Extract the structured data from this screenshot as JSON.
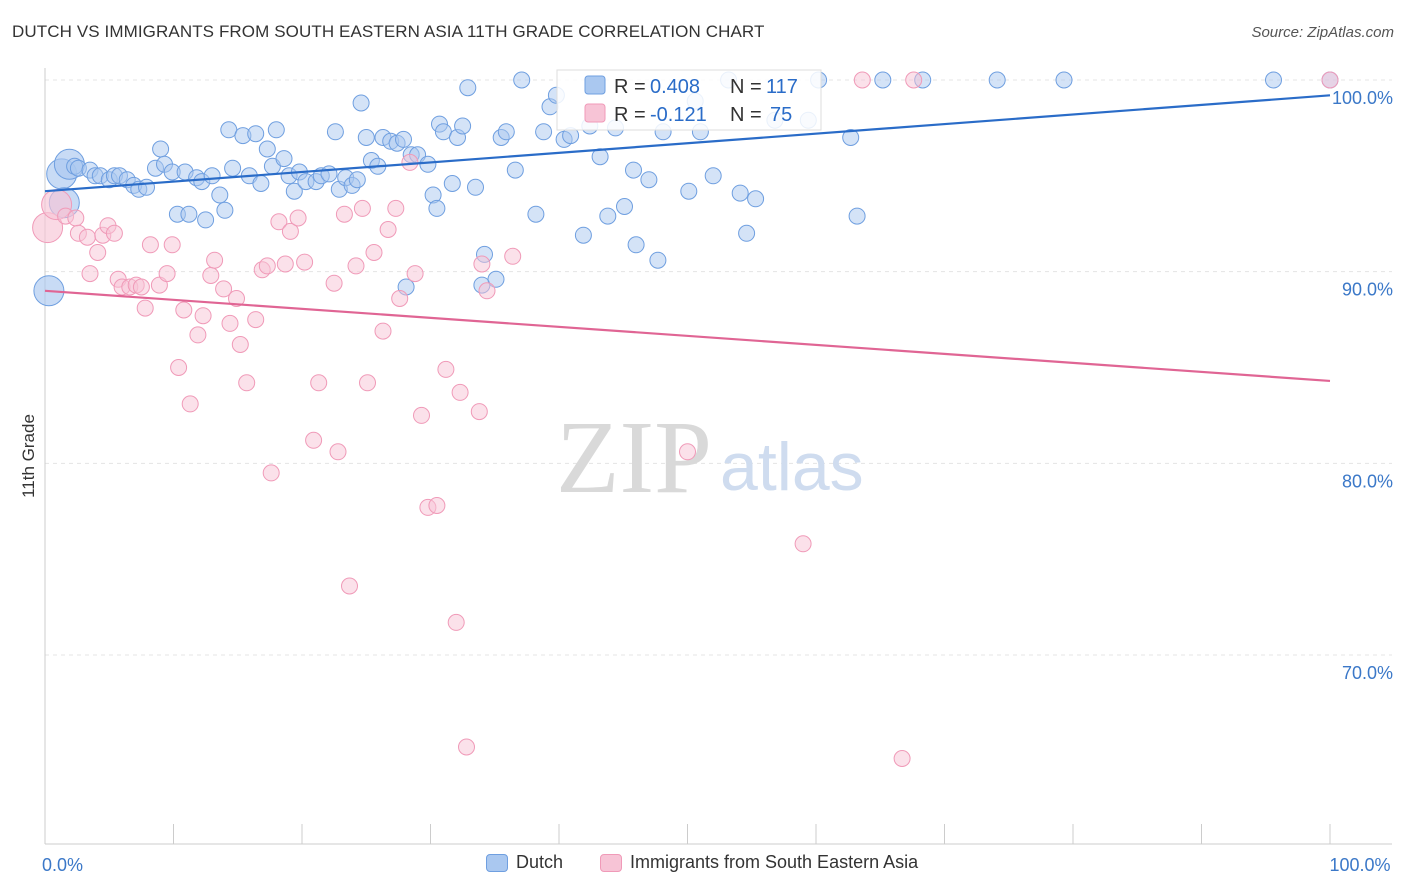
{
  "header": {
    "title": "DUTCH VS IMMIGRANTS FROM SOUTH EASTERN ASIA 11TH GRADE CORRELATION CHART",
    "source": "Source: ZipAtlas.com"
  },
  "watermark": {
    "zip": "ZIP",
    "atlas": "atlas"
  },
  "chart_data": {
    "type": "scatter",
    "title": "DUTCH VS IMMIGRANTS FROM SOUTH EASTERN ASIA 11TH GRADE CORRELATION CHART",
    "xlabel": "",
    "ylabel": "11th Grade",
    "xlim": [
      0,
      100
    ],
    "ylim": [
      60.8,
      101.5
    ],
    "x_tick_labels": [
      {
        "value": 0,
        "label": "0.0%"
      },
      {
        "value": 100,
        "label": "100.0%"
      }
    ],
    "y_tick_labels": [
      {
        "value": 100,
        "label": "100.0%"
      },
      {
        "value": 90,
        "label": "90.0%"
      },
      {
        "value": 80,
        "label": "80.0%"
      },
      {
        "value": 70,
        "label": "70.0%"
      }
    ],
    "grid": true,
    "legend_position": "top-center",
    "series": [
      {
        "name": "Dutch",
        "color": "#6f9fe0",
        "fill": "#aac8f0",
        "line_color": "#2a6cc8",
        "r_label": "R = ",
        "r_value": "0.408",
        "n_label": "N = ",
        "n_value": "117",
        "trend": {
          "x0": 0,
          "y0": 94.2,
          "x1": 100,
          "y1": 99.2
        },
        "points": [
          [
            0.3,
            89.0,
            1
          ],
          [
            1.3,
            95.1,
            1
          ],
          [
            1.5,
            93.6,
            1
          ],
          [
            1.9,
            95.6,
            1
          ],
          [
            2.3,
            95.5,
            0
          ],
          [
            2.6,
            95.4,
            0
          ],
          [
            3.5,
            95.3,
            0
          ],
          [
            3.9,
            95.0,
            0
          ],
          [
            4.3,
            95.0,
            0
          ],
          [
            5.0,
            94.8,
            0
          ],
          [
            5.4,
            95.0,
            0
          ],
          [
            5.8,
            95.0,
            0
          ],
          [
            6.4,
            94.8,
            0
          ],
          [
            6.9,
            94.5,
            0
          ],
          [
            7.3,
            94.3,
            0
          ],
          [
            7.9,
            94.4,
            0
          ],
          [
            8.6,
            95.4,
            0
          ],
          [
            9.0,
            96.4,
            0
          ],
          [
            9.3,
            95.6,
            0
          ],
          [
            9.9,
            95.2,
            0
          ],
          [
            10.3,
            93.0,
            0
          ],
          [
            10.9,
            95.2,
            0
          ],
          [
            11.2,
            93.0,
            0
          ],
          [
            11.8,
            94.9,
            0
          ],
          [
            12.2,
            94.7,
            0
          ],
          [
            12.5,
            92.7,
            0
          ],
          [
            13.0,
            95.0,
            0
          ],
          [
            13.6,
            94.0,
            0
          ],
          [
            14.0,
            93.2,
            0
          ],
          [
            14.3,
            97.4,
            0
          ],
          [
            14.6,
            95.4,
            0
          ],
          [
            15.4,
            97.1,
            0
          ],
          [
            15.9,
            95.0,
            0
          ],
          [
            16.4,
            97.2,
            0
          ],
          [
            16.8,
            94.6,
            0
          ],
          [
            17.3,
            96.4,
            0
          ],
          [
            17.7,
            95.5,
            0
          ],
          [
            18.0,
            97.4,
            0
          ],
          [
            18.6,
            95.9,
            0
          ],
          [
            19.0,
            95.0,
            0
          ],
          [
            19.4,
            94.2,
            0
          ],
          [
            19.8,
            95.2,
            0
          ],
          [
            20.3,
            94.7,
            0
          ],
          [
            21.1,
            94.7,
            0
          ],
          [
            21.5,
            95.0,
            0
          ],
          [
            22.1,
            95.1,
            0
          ],
          [
            22.6,
            97.3,
            0
          ],
          [
            22.9,
            94.3,
            0
          ],
          [
            23.4,
            94.9,
            0
          ],
          [
            23.9,
            94.5,
            0
          ],
          [
            24.3,
            94.8,
            0
          ],
          [
            24.6,
            98.8,
            0
          ],
          [
            25.0,
            97.0,
            0
          ],
          [
            25.4,
            95.8,
            0
          ],
          [
            25.9,
            95.5,
            0
          ],
          [
            26.3,
            97.0,
            0
          ],
          [
            26.9,
            96.8,
            0
          ],
          [
            27.4,
            96.7,
            0
          ],
          [
            27.9,
            96.9,
            0
          ],
          [
            28.1,
            89.2,
            0
          ],
          [
            28.5,
            96.1,
            0
          ],
          [
            29.0,
            96.1,
            0
          ],
          [
            29.8,
            95.6,
            0
          ],
          [
            30.2,
            94.0,
            0
          ],
          [
            30.5,
            93.3,
            0
          ],
          [
            30.7,
            97.7,
            0
          ],
          [
            31.0,
            97.3,
            0
          ],
          [
            31.7,
            94.6,
            0
          ],
          [
            32.1,
            97.0,
            0
          ],
          [
            32.5,
            97.6,
            0
          ],
          [
            32.9,
            99.6,
            0
          ],
          [
            33.5,
            94.4,
            0
          ],
          [
            34.2,
            90.9,
            0
          ],
          [
            34.0,
            89.3,
            0
          ],
          [
            35.1,
            89.6,
            0
          ],
          [
            35.5,
            97.0,
            0
          ],
          [
            35.9,
            97.3,
            0
          ],
          [
            36.6,
            95.3,
            0
          ],
          [
            37.1,
            100.0,
            0
          ],
          [
            38.2,
            93.0,
            0
          ],
          [
            38.8,
            97.3,
            0
          ],
          [
            39.3,
            98.6,
            0
          ],
          [
            39.8,
            99.2,
            0
          ],
          [
            40.4,
            96.9,
            0
          ],
          [
            40.9,
            97.1,
            0
          ],
          [
            41.9,
            91.9,
            0
          ],
          [
            42.4,
            97.6,
            0
          ],
          [
            43.2,
            96.0,
            0
          ],
          [
            43.8,
            92.9,
            0
          ],
          [
            44.4,
            97.5,
            0
          ],
          [
            45.1,
            93.4,
            0
          ],
          [
            45.8,
            95.3,
            0
          ],
          [
            46.0,
            91.4,
            0
          ],
          [
            47.0,
            94.8,
            0
          ],
          [
            47.7,
            90.6,
            0
          ],
          [
            48.1,
            97.3,
            0
          ],
          [
            50.1,
            94.2,
            0
          ],
          [
            50.6,
            98.9,
            0
          ],
          [
            51.0,
            97.3,
            0
          ],
          [
            52.0,
            95.0,
            0
          ],
          [
            53.2,
            100.0,
            0
          ],
          [
            54.1,
            94.1,
            0
          ],
          [
            54.6,
            92.0,
            0
          ],
          [
            55.3,
            93.8,
            0
          ],
          [
            56.8,
            97.9,
            0
          ],
          [
            59.4,
            97.9,
            0
          ],
          [
            60.2,
            100.0,
            0
          ],
          [
            62.7,
            97.0,
            0
          ],
          [
            63.2,
            92.9,
            0
          ],
          [
            65.2,
            100.0,
            0
          ],
          [
            68.3,
            100.0,
            0
          ],
          [
            74.1,
            100.0,
            0
          ],
          [
            79.3,
            100.0,
            0
          ],
          [
            95.6,
            100.0,
            0
          ],
          [
            100.0,
            100.0,
            0
          ]
        ]
      },
      {
        "name": "Immigrants from South Eastern Asia",
        "color": "#f09ab8",
        "fill": "#f7c4d6",
        "line_color": "#e06594",
        "r_label": "R = ",
        "r_value": "-0.121",
        "n_label": "N = ",
        "n_value": "75",
        "trend": {
          "x0": 0,
          "y0": 89.0,
          "x1": 100,
          "y1": 84.3
        },
        "points": [
          [
            0.2,
            92.3,
            1
          ],
          [
            0.9,
            93.5,
            1
          ],
          [
            1.6,
            92.9,
            0
          ],
          [
            2.4,
            92.8,
            0
          ],
          [
            2.6,
            92.0,
            0
          ],
          [
            3.3,
            91.8,
            0
          ],
          [
            3.5,
            89.9,
            0
          ],
          [
            4.1,
            91.0,
            0
          ],
          [
            4.5,
            91.9,
            0
          ],
          [
            4.9,
            92.4,
            0
          ],
          [
            5.4,
            92.0,
            0
          ],
          [
            5.7,
            89.6,
            0
          ],
          [
            6.0,
            89.2,
            0
          ],
          [
            6.6,
            89.2,
            0
          ],
          [
            7.1,
            89.3,
            0
          ],
          [
            7.5,
            89.2,
            0
          ],
          [
            7.8,
            88.1,
            0
          ],
          [
            8.2,
            91.4,
            0
          ],
          [
            8.9,
            89.3,
            0
          ],
          [
            9.5,
            89.9,
            0
          ],
          [
            9.9,
            91.4,
            0
          ],
          [
            10.4,
            85.0,
            0
          ],
          [
            10.8,
            88.0,
            0
          ],
          [
            11.3,
            83.1,
            0
          ],
          [
            11.9,
            86.7,
            0
          ],
          [
            12.3,
            87.7,
            0
          ],
          [
            12.9,
            89.8,
            0
          ],
          [
            13.2,
            90.6,
            0
          ],
          [
            13.9,
            89.1,
            0
          ],
          [
            14.4,
            87.3,
            0
          ],
          [
            14.9,
            88.6,
            0
          ],
          [
            15.2,
            86.2,
            0
          ],
          [
            15.7,
            84.2,
            0
          ],
          [
            16.4,
            87.5,
            0
          ],
          [
            16.9,
            90.1,
            0
          ],
          [
            17.3,
            90.3,
            0
          ],
          [
            17.6,
            79.5,
            0
          ],
          [
            18.2,
            92.6,
            0
          ],
          [
            18.7,
            90.4,
            0
          ],
          [
            19.1,
            92.1,
            0
          ],
          [
            19.7,
            92.8,
            0
          ],
          [
            20.2,
            90.5,
            0
          ],
          [
            20.9,
            81.2,
            0
          ],
          [
            21.3,
            84.2,
            0
          ],
          [
            22.5,
            89.4,
            0
          ],
          [
            22.8,
            80.6,
            0
          ],
          [
            23.3,
            93.0,
            0
          ],
          [
            23.7,
            73.6,
            0
          ],
          [
            24.2,
            90.3,
            0
          ],
          [
            24.7,
            93.3,
            0
          ],
          [
            25.1,
            84.2,
            0
          ],
          [
            25.6,
            91.0,
            0
          ],
          [
            26.3,
            86.9,
            0
          ],
          [
            26.7,
            92.2,
            0
          ],
          [
            27.3,
            93.3,
            0
          ],
          [
            27.6,
            88.6,
            0
          ],
          [
            28.4,
            95.7,
            0
          ],
          [
            28.8,
            89.9,
            0
          ],
          [
            29.3,
            82.5,
            0
          ],
          [
            29.8,
            77.7,
            0
          ],
          [
            30.5,
            77.8,
            0
          ],
          [
            31.2,
            84.9,
            0
          ],
          [
            32.0,
            71.7,
            0
          ],
          [
            32.3,
            83.7,
            0
          ],
          [
            32.8,
            65.2,
            0
          ],
          [
            33.8,
            82.7,
            0
          ],
          [
            34.0,
            90.4,
            0
          ],
          [
            34.4,
            89.0,
            0
          ],
          [
            36.4,
            90.8,
            0
          ],
          [
            50.0,
            80.6,
            0
          ],
          [
            59.0,
            75.8,
            0
          ],
          [
            63.6,
            100.0,
            0
          ],
          [
            66.7,
            64.6,
            0
          ],
          [
            67.6,
            100.0,
            0
          ],
          [
            100.0,
            100.0,
            0
          ]
        ]
      }
    ]
  }
}
